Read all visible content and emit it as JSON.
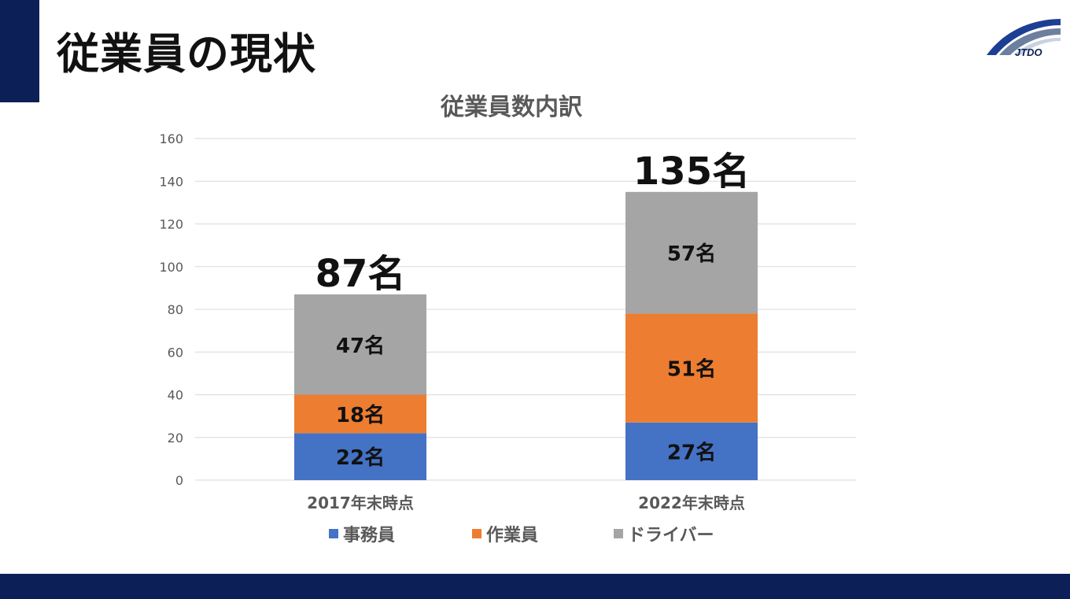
{
  "slide": {
    "title": "従業員の現状",
    "logo_text": "JTDO"
  },
  "colors": {
    "navy": "#0c1f56",
    "jimuin": "#4472c4",
    "sagyoin": "#ed7d31",
    "driver": "#a5a5a5"
  },
  "chart_data": {
    "type": "bar",
    "stacked": true,
    "title": "従業員数内訳",
    "categories": [
      "2017年末時点",
      "2022年末時点"
    ],
    "series": [
      {
        "name": "事務員",
        "values": [
          22,
          27
        ],
        "labels": [
          "22名",
          "27名"
        ],
        "color": "#4472c4"
      },
      {
        "name": "作業員",
        "values": [
          18,
          51
        ],
        "labels": [
          "18名",
          "51名"
        ],
        "color": "#ed7d31"
      },
      {
        "name": "ドライバー",
        "values": [
          47,
          57
        ],
        "labels": [
          "47名",
          "57名"
        ],
        "color": "#a5a5a5"
      }
    ],
    "totals": [
      87,
      135
    ],
    "total_labels": [
      "87名",
      "135名"
    ],
    "ylim": [
      0,
      160
    ],
    "yticks": [
      0,
      20,
      40,
      60,
      80,
      100,
      120,
      140,
      160
    ],
    "grid": true,
    "legend_position": "bottom"
  }
}
